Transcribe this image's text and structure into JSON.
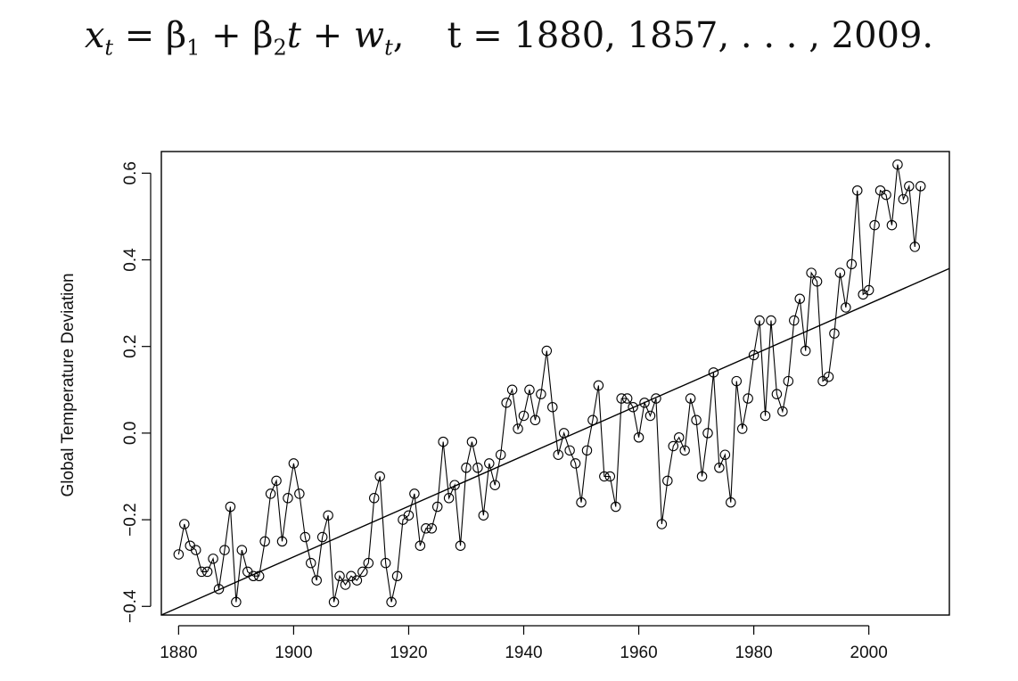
{
  "equation": {
    "parts": [
      "x",
      "t",
      " = β",
      "1",
      " + β",
      "2",
      "t + w",
      "t",
      ",",
      "t = 1880, 1857, . . . , 2009."
    ]
  },
  "chart_data": {
    "type": "scatter",
    "title": "",
    "xlabel": "",
    "ylabel": "Global Temperature Deviation",
    "xlim": [
      1877,
      2014
    ],
    "ylim": [
      -0.42,
      0.65
    ],
    "xticks": [
      1880,
      1900,
      1920,
      1940,
      1960,
      1980,
      2000
    ],
    "yticks": [
      -0.4,
      -0.2,
      0.0,
      0.2,
      0.4,
      0.6
    ],
    "xtick_labels": [
      "1880",
      "1900",
      "1920",
      "1940",
      "1960",
      "1980",
      "2000"
    ],
    "ytick_labels": [
      "−0.4",
      "−0.2",
      "0.0",
      "0.2",
      "0.4",
      "0.6"
    ],
    "grid": false,
    "series": [
      {
        "style": "points-connected",
        "x_start": 1880,
        "x_end": 2009,
        "values": [
          -0.28,
          -0.21,
          -0.26,
          -0.27,
          -0.32,
          -0.32,
          -0.29,
          -0.36,
          -0.27,
          -0.17,
          -0.39,
          -0.27,
          -0.32,
          -0.33,
          -0.33,
          -0.25,
          -0.14,
          -0.11,
          -0.25,
          -0.15,
          -0.07,
          -0.14,
          -0.24,
          -0.3,
          -0.34,
          -0.24,
          -0.19,
          -0.39,
          -0.33,
          -0.35,
          -0.33,
          -0.34,
          -0.32,
          -0.3,
          -0.15,
          -0.1,
          -0.3,
          -0.39,
          -0.33,
          -0.2,
          -0.19,
          -0.14,
          -0.26,
          -0.22,
          -0.22,
          -0.17,
          -0.02,
          -0.15,
          -0.12,
          -0.26,
          -0.08,
          -0.02,
          -0.08,
          -0.19,
          -0.07,
          -0.12,
          -0.05,
          0.07,
          0.1,
          0.01,
          0.04,
          0.1,
          0.03,
          0.09,
          0.19,
          0.06,
          -0.05,
          0.0,
          -0.04,
          -0.07,
          -0.16,
          -0.04,
          0.03,
          0.11,
          -0.1,
          -0.1,
          -0.17,
          0.08,
          0.08,
          0.06,
          -0.01,
          0.07,
          0.04,
          0.08,
          -0.21,
          -0.11,
          -0.03,
          -0.01,
          -0.04,
          0.08,
          0.03,
          -0.1,
          0.0,
          0.14,
          -0.08,
          -0.05,
          -0.16,
          0.12,
          0.01,
          0.08,
          0.18,
          0.26,
          0.04,
          0.26,
          0.09,
          0.05,
          0.12,
          0.26,
          0.31,
          0.19,
          0.37,
          0.35,
          0.12,
          0.13,
          0.23,
          0.37,
          0.29,
          0.39,
          0.56,
          0.32,
          0.33,
          0.48,
          0.56,
          0.55,
          0.48,
          0.62,
          0.54,
          0.57,
          0.43,
          0.57
        ]
      },
      {
        "style": "line",
        "x": [
          1877,
          2014
        ],
        "y": [
          -0.42,
          0.38
        ]
      }
    ]
  }
}
